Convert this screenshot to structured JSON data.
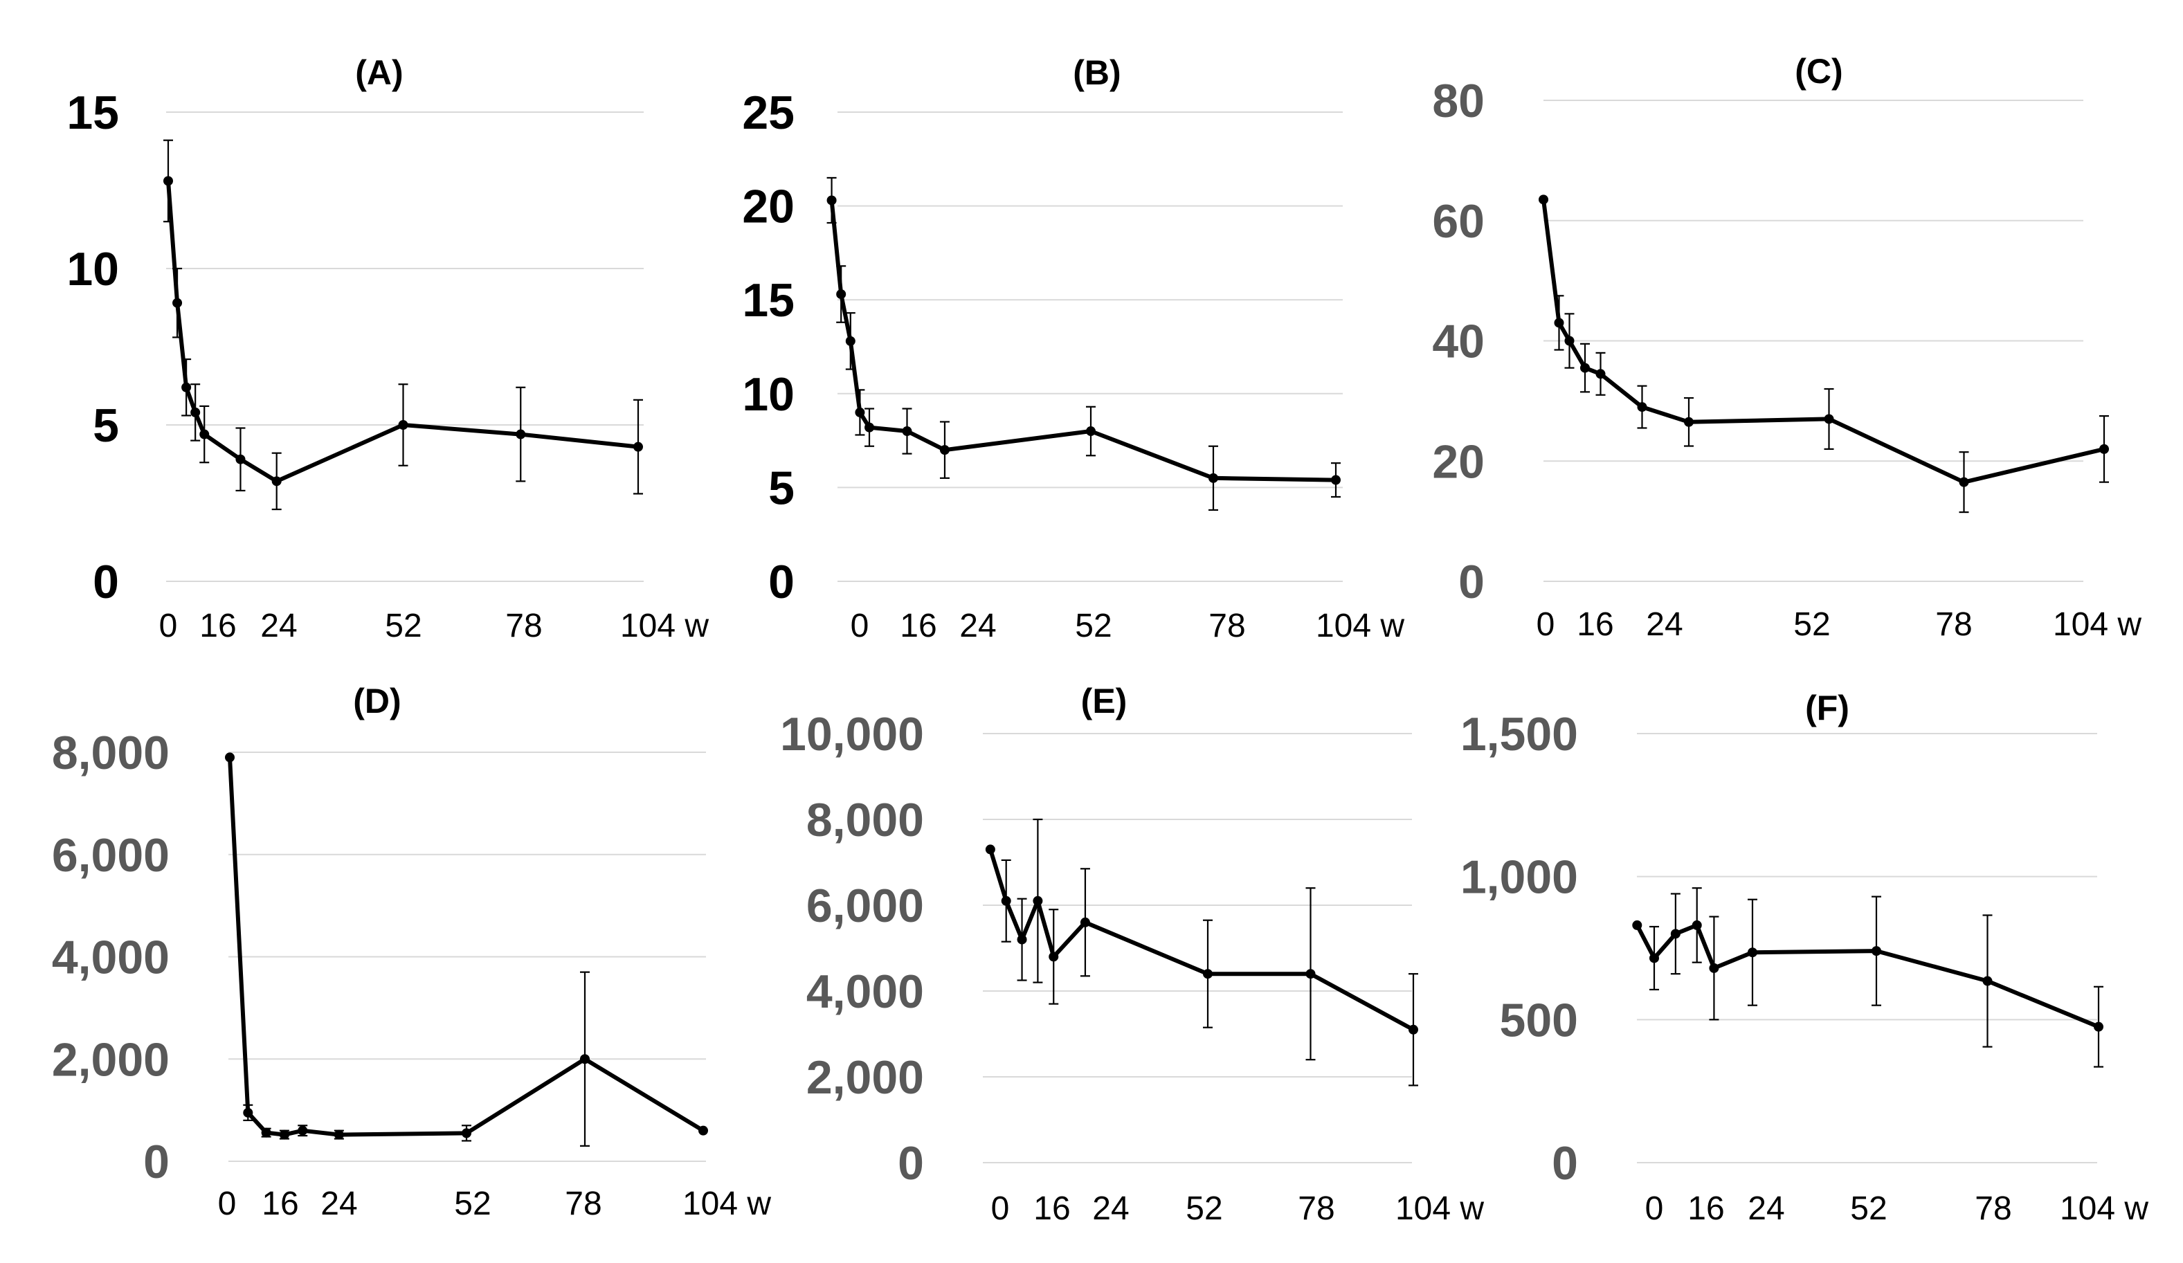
{
  "chart_data": [
    {
      "id": "A",
      "type": "line",
      "title": "(A)",
      "ylim": [
        0,
        15
      ],
      "yticks": [
        0,
        5,
        10,
        15
      ],
      "ytick_labels": [
        "0",
        "5",
        "10",
        "15"
      ],
      "ytick_color": "#000000",
      "xlim": [
        0,
        104
      ],
      "xticks": [
        0,
        16,
        24,
        52,
        78,
        104
      ],
      "xtick_labels": [
        "0",
        "16",
        "24",
        "52",
        "78",
        "104 w"
      ],
      "series": [
        {
          "name": "A",
          "x": [
            0,
            2,
            4,
            6,
            8,
            16,
            24,
            52,
            78,
            104
          ],
          "y": [
            12.8,
            8.9,
            6.2,
            5.4,
            4.7,
            3.9,
            3.2,
            5.0,
            4.7,
            4.3
          ],
          "err": [
            1.3,
            1.1,
            0.9,
            0.9,
            0.9,
            1.0,
            0.9,
            1.3,
            1.5,
            1.5
          ]
        }
      ]
    },
    {
      "id": "B",
      "type": "line",
      "title": "(B)",
      "ylim": [
        0,
        25
      ],
      "yticks": [
        0,
        5,
        10,
        15,
        20,
        25
      ],
      "ytick_labels": [
        "0",
        "5",
        "10",
        "15",
        "20",
        "25"
      ],
      "ytick_color": "#000000",
      "xlim": [
        0,
        104
      ],
      "xticks": [
        0,
        16,
        24,
        52,
        78,
        104
      ],
      "xtick_labels": [
        "0",
        "16",
        "24",
        "52",
        "78",
        "104 w"
      ],
      "series": [
        {
          "name": "B",
          "x": [
            -3,
            -1,
            1,
            3,
            5,
            13,
            21,
            52,
            78,
            104
          ],
          "y": [
            20.3,
            15.3,
            12.8,
            9.0,
            8.2,
            8.0,
            7.0,
            8.0,
            5.5,
            5.4
          ],
          "err": [
            1.2,
            1.5,
            1.5,
            1.2,
            1.0,
            1.2,
            1.5,
            1.3,
            1.7,
            0.9
          ]
        }
      ]
    },
    {
      "id": "C",
      "type": "line",
      "title": "(C)",
      "ylim": [
        0,
        80
      ],
      "yticks": [
        0,
        20,
        40,
        60,
        80
      ],
      "ytick_labels": [
        "0",
        "20",
        "40",
        "60",
        "80"
      ],
      "ytick_color": "#595959",
      "xlim": [
        0,
        104
      ],
      "xticks": [
        0,
        16,
        24,
        52,
        78,
        104
      ],
      "xtick_labels": [
        "0",
        "16",
        "24",
        "52",
        "78",
        "104 w"
      ],
      "series": [
        {
          "name": "C",
          "x": [
            0,
            3,
            5,
            8,
            11,
            19,
            28,
            55,
            81,
            108
          ],
          "y": [
            63.5,
            43.0,
            40.0,
            35.5,
            34.5,
            29.0,
            26.5,
            27.0,
            16.5,
            22.0
          ],
          "err": [
            0,
            4.5,
            4.5,
            4.0,
            3.5,
            3.5,
            4.0,
            5.0,
            5.0,
            5.5
          ]
        }
      ]
    },
    {
      "id": "D",
      "type": "line",
      "title": "(D)",
      "ylim": [
        0,
        8000
      ],
      "yticks": [
        0,
        2000,
        4000,
        6000,
        8000
      ],
      "ytick_labels": [
        "0",
        "2,000",
        "4,000",
        "6,000",
        "8,000"
      ],
      "ytick_color": "#595959",
      "xlim": [
        0,
        104
      ],
      "xticks": [
        0,
        16,
        24,
        52,
        78,
        104
      ],
      "xtick_labels": [
        "0",
        "16",
        "24",
        "52",
        "78",
        "104 w"
      ],
      "series": [
        {
          "name": "D",
          "x": [
            0,
            4,
            8,
            12,
            16,
            24,
            52,
            78,
            104
          ],
          "y": [
            7900,
            950,
            560,
            520,
            600,
            520,
            550,
            2000,
            600
          ],
          "err": [
            0,
            150,
            80,
            80,
            100,
            80,
            150,
            1700,
            0
          ]
        }
      ]
    },
    {
      "id": "E",
      "type": "line",
      "title": "(E)",
      "ylim": [
        0,
        10000
      ],
      "yticks": [
        0,
        2000,
        4000,
        6000,
        8000,
        10000
      ],
      "ytick_labels": [
        "0",
        "2,000",
        "4,000",
        "6,000",
        "8,000",
        "10,000"
      ],
      "ytick_color": "#595959",
      "xlim": [
        0,
        104
      ],
      "xticks": [
        0,
        16,
        24,
        52,
        78,
        104
      ],
      "xtick_labels": [
        "0",
        "16",
        "24",
        "52",
        "78",
        "104 w"
      ],
      "series": [
        {
          "name": "E",
          "x": [
            -3,
            1,
            5,
            9,
            13,
            21,
            52,
            78,
            104
          ],
          "y": [
            7300,
            6100,
            5200,
            6100,
            4800,
            5600,
            4400,
            4400,
            3100
          ],
          "err": [
            0,
            950,
            950,
            1900,
            1100,
            1250,
            1250,
            2000,
            1300
          ]
        }
      ]
    },
    {
      "id": "F",
      "type": "line",
      "title": "(F)",
      "ylim": [
        0,
        1500
      ],
      "yticks": [
        0,
        500,
        1000,
        1500
      ],
      "ytick_labels": [
        "0",
        "500",
        "1,000",
        "1,500"
      ],
      "ytick_color": "#595959",
      "xlim": [
        0,
        104
      ],
      "xticks": [
        0,
        16,
        24,
        52,
        78,
        104
      ],
      "xtick_labels": [
        "0",
        "16",
        "24",
        "52",
        "78",
        "104 w"
      ],
      "series": [
        {
          "name": "F",
          "x": [
            -4,
            0,
            5,
            10,
            14,
            23,
            52,
            78,
            104
          ],
          "y": [
            830,
            715,
            800,
            830,
            680,
            735,
            740,
            635,
            475
          ],
          "err": [
            0,
            110,
            140,
            130,
            180,
            185,
            190,
            230,
            140
          ]
        }
      ]
    }
  ]
}
